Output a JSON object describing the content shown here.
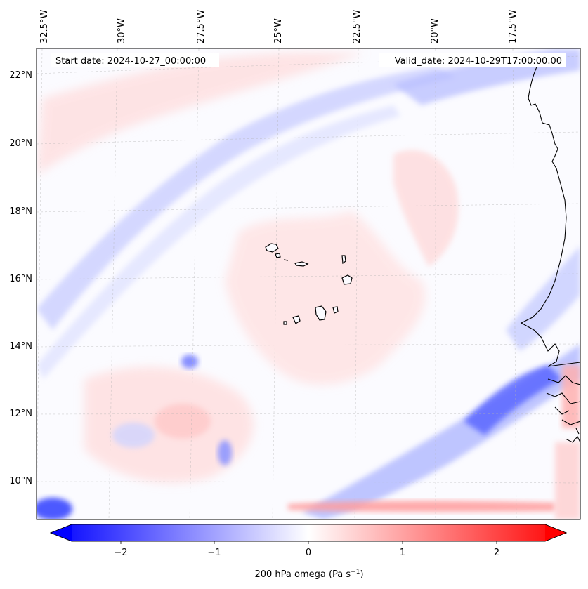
{
  "map": {
    "start_date": "Start date: 2024-10-27_00:00:00",
    "valid_date": "Valid_date: 2024-10-29T17:00:00.00",
    "lon_labels": [
      "32.5°W",
      "30°W",
      "27.5°W",
      "25°W",
      "22.5°W",
      "20°W",
      "17.5°W"
    ],
    "lat_labels": [
      "22°N",
      "20°N",
      "18°N",
      "16°N",
      "14°N",
      "12°N",
      "10°N"
    ],
    "colors": {
      "negative": "#0000ff",
      "zero": "#ffffff",
      "positive": "#ff0000",
      "coast": "#000000"
    }
  },
  "colorbar": {
    "tick_labels": [
      "−2",
      "−1",
      "0",
      "1",
      "2"
    ],
    "label": "200 hPa omega (Pa s",
    "label_sup": "−1",
    "label_end": ")",
    "range": [
      -2.7,
      2.7
    ]
  }
}
